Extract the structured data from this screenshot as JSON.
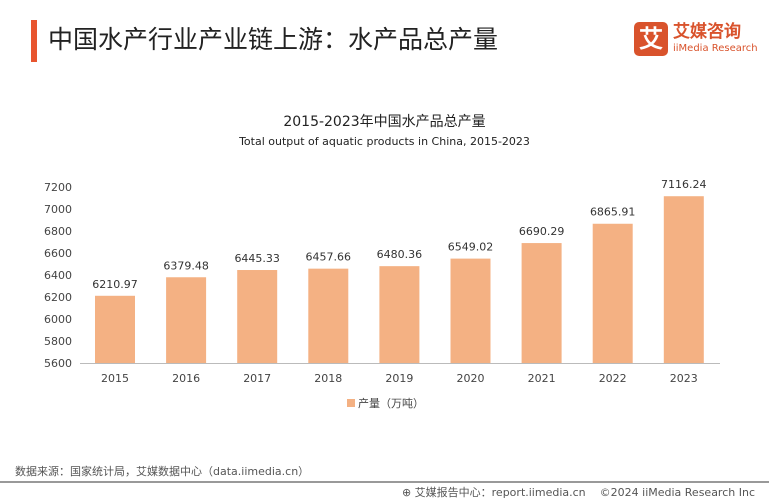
{
  "header": {
    "title": "中国水产行业产业链上游：水产品总产量",
    "logo_icon": "艾",
    "logo_cn": "艾媒咨询",
    "logo_en": "iiMedia Research"
  },
  "chart_data": {
    "type": "bar",
    "title": "2015-2023年中国水产品总产量",
    "subtitle": "Total output of aquatic products in China, 2015-2023",
    "categories": [
      "2015",
      "2016",
      "2017",
      "2018",
      "2019",
      "2020",
      "2021",
      "2022",
      "2023"
    ],
    "series": [
      {
        "name": "产量（万吨）",
        "values": [
          6210.97,
          6379.48,
          6445.33,
          6457.66,
          6480.36,
          6549.02,
          6690.29,
          6865.91,
          7116.24
        ]
      }
    ],
    "ylim": [
      5600,
      7200
    ],
    "yticks": [
      5600,
      5800,
      6000,
      6200,
      6400,
      6600,
      6800,
      7000,
      7200
    ],
    "grid": false,
    "legend": "bottom",
    "color": "#f4b183"
  },
  "footer": {
    "source": "数据来源：国家统计局，艾媒数据中心（data.iimedia.cn）",
    "report": "艾媒报告中心：report.iimedia.cn",
    "copyright": "©2024  iiMedia Research  Inc"
  }
}
